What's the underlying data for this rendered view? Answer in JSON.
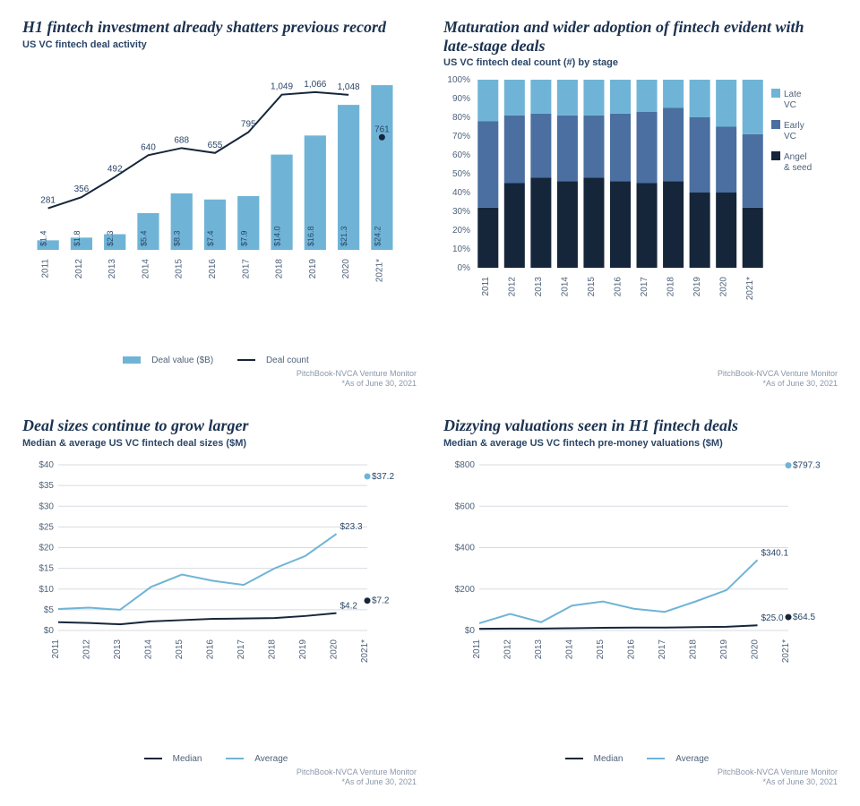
{
  "colors": {
    "title": "#1c3250",
    "subtitle": "#2a4668",
    "axis": "#50627a",
    "grid": "#d7dbe0",
    "bar_light": "#6fb4d6",
    "bar_med": "#4a6fa0",
    "bar_dark": "#16263a",
    "line_dark": "#16263a",
    "line_light": "#6fb4d6",
    "footnote": "#8a97a8",
    "bg": "#ffffff"
  },
  "years": [
    "2011",
    "2012",
    "2013",
    "2014",
    "2015",
    "2016",
    "2017",
    "2018",
    "2019",
    "2020",
    "2021*"
  ],
  "footnote_source": "PitchBook-NVCA Venture Monitor",
  "footnote_asof": "*As of June 30, 2021",
  "chart1": {
    "title": "H1 fintech investment already shatters previous record",
    "subtitle": "US VC fintech deal activity",
    "type": "bar+line",
    "bar_values": [
      1.4,
      1.8,
      2.3,
      5.4,
      8.3,
      7.4,
      7.9,
      14.0,
      16.8,
      21.3,
      24.2
    ],
    "bar_labels": [
      "$1.4",
      "$1.8",
      "$2.3",
      "$5.4",
      "$8.3",
      "$7.4",
      "$7.9",
      "$14.0",
      "$16.8",
      "$21.3",
      "$24.2"
    ],
    "line_values": [
      281,
      356,
      492,
      640,
      688,
      655,
      795,
      1049,
      1066,
      1048,
      761
    ],
    "line_labels": [
      "281",
      "356",
      "492",
      "640",
      "688",
      "655",
      "795",
      "1,049",
      "1,066",
      "1,048",
      "761"
    ],
    "bar_ymax": 25,
    "line_ymax": 1150,
    "legend_bar": "Deal value ($B)",
    "legend_line": "Deal count"
  },
  "chart2": {
    "title": "Maturation and wider adoption of fintech evident with late-stage deals",
    "subtitle": "US VC fintech deal count (#) by stage",
    "type": "stacked-bar-100",
    "segments": [
      "angel_seed",
      "early_vc",
      "late_vc"
    ],
    "segment_colors": [
      "#16263a",
      "#4a6fa0",
      "#6fb4d6"
    ],
    "legend_labels": [
      "Late VC",
      "Early VC",
      "Angel & seed"
    ],
    "legend_colors": [
      "#6fb4d6",
      "#4a6fa0",
      "#16263a"
    ],
    "data_pct": {
      "angel_seed": [
        32,
        45,
        48,
        46,
        48,
        46,
        45,
        46,
        40,
        40,
        32
      ],
      "early_vc": [
        46,
        36,
        34,
        35,
        33,
        36,
        38,
        39,
        40,
        35,
        39
      ],
      "late_vc": [
        22,
        19,
        18,
        19,
        19,
        18,
        17,
        15,
        20,
        25,
        29
      ]
    },
    "ytick_step": 10,
    "ymax": 100
  },
  "chart3": {
    "title": "Deal sizes continue to grow larger",
    "subtitle": "Median & average US VC fintech deal sizes ($M)",
    "type": "two-line",
    "median": [
      2.0,
      1.8,
      1.5,
      2.2,
      2.5,
      2.8,
      2.9,
      3.0,
      3.5,
      4.2,
      7.2
    ],
    "average": [
      5.2,
      5.5,
      5.0,
      10.5,
      13.5,
      12.0,
      11.0,
      15.0,
      18.0,
      23.3,
      37.2
    ],
    "median_end_label": "$4.2",
    "average_end_label": "$23.3",
    "median_dot_label": "$7.2",
    "average_dot_label": "$37.2",
    "ymax": 40,
    "ytick_step": 5,
    "legend_median": "Median",
    "legend_average": "Average"
  },
  "chart4": {
    "title": "Dizzying valuations seen in H1 fintech deals",
    "subtitle": "Median & average US VC fintech pre-money valuations ($M)",
    "type": "two-line",
    "median": [
      8,
      9,
      9,
      11,
      13,
      14,
      14,
      16,
      18,
      25.0,
      64.5
    ],
    "average": [
      35,
      80,
      40,
      120,
      140,
      105,
      90,
      140,
      195,
      340.1,
      797.3
    ],
    "median_end_label": "$25.0",
    "average_end_label": "$340.1",
    "median_dot_label": "$64.5",
    "average_dot_label": "$797.3",
    "ymax": 800,
    "ytick_step": 200,
    "legend_median": "Median",
    "legend_average": "Average"
  }
}
